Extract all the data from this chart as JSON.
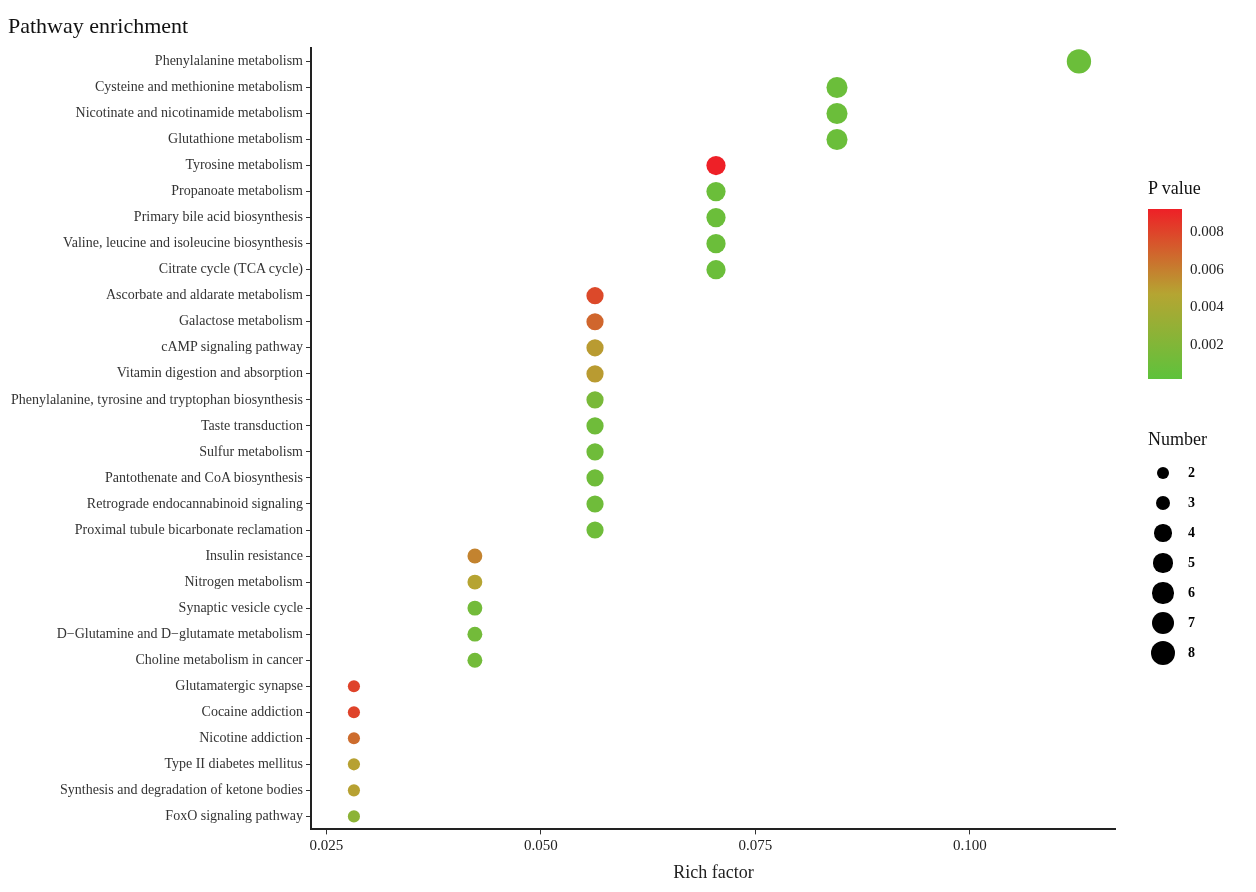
{
  "chart_data": {
    "type": "bubble",
    "title": "Pathway enrichment",
    "xlabel": "Rich factor",
    "clabel": "P value",
    "legend_title": "Number",
    "categories": [
      "Phenylalanine metabolism",
      "Cysteine and methionine metabolism",
      "Nicotinate and nicotinamide metabolism",
      "Glutathione metabolism",
      "Tyrosine metabolism",
      "Propanoate metabolism",
      "Primary bile acid biosynthesis",
      "Valine, leucine and isoleucine biosynthesis",
      "Citrate cycle (TCA cycle)",
      "Ascorbate and aldarate metabolism",
      "Galactose metabolism",
      "cAMP signaling pathway",
      "Vitamin digestion and absorption",
      "Phenylalanine, tyrosine and tryptophan biosynthesis",
      "Taste transduction",
      "Sulfur metabolism",
      "Pantothenate and CoA biosynthesis",
      "Retrograde endocannabinoid signaling",
      "Proximal tubule bicarbonate reclamation",
      "Insulin resistance",
      "Nitrogen metabolism",
      "Synaptic vesicle cycle",
      "D−Glutamine and D−glutamate metabolism",
      "Choline metabolism in cancer",
      "Glutamatergic synapse",
      "Cocaine addiction",
      "Nicotine addiction",
      "Type II diabetes mellitus",
      "Synthesis and degradation of ketone bodies",
      "FoxO signaling pathway"
    ],
    "orientation": "horizontal",
    "values": [
      0.1127,
      0.0845,
      0.0845,
      0.0845,
      0.0704,
      0.0704,
      0.0704,
      0.0704,
      0.0704,
      0.0563,
      0.0563,
      0.0563,
      0.0563,
      0.0563,
      0.0563,
      0.0563,
      0.0563,
      0.0563,
      0.0563,
      0.0423,
      0.0423,
      0.0423,
      0.0423,
      0.0423,
      0.0282,
      0.0282,
      0.0282,
      0.0282,
      0.0282,
      0.0282
    ],
    "sizes": [
      8,
      6,
      6,
      6,
      5,
      5,
      5,
      5,
      5,
      4,
      4,
      4,
      4,
      4,
      4,
      4,
      4,
      4,
      4,
      3,
      3,
      3,
      3,
      3,
      2,
      2,
      2,
      2,
      2,
      2
    ],
    "cvalues": [
      0.0008,
      0.0008,
      0.0008,
      0.0008,
      0.0092,
      0.0008,
      0.0008,
      0.0008,
      0.0008,
      0.0078,
      0.0068,
      0.005,
      0.005,
      0.0015,
      0.001,
      0.001,
      0.001,
      0.001,
      0.001,
      0.0058,
      0.0047,
      0.0012,
      0.0012,
      0.0012,
      0.008,
      0.008,
      0.0066,
      0.0048,
      0.0048,
      0.0025
    ],
    "size_legend": [
      2,
      3,
      4,
      5,
      6,
      7,
      8
    ],
    "xlim": [
      0.0232,
      0.117
    ],
    "xticks": [
      {
        "value": 0.025,
        "label": "0.025"
      },
      {
        "value": 0.05,
        "label": "0.050"
      },
      {
        "value": 0.075,
        "label": "0.075"
      },
      {
        "value": 0.1,
        "label": "0.100"
      }
    ],
    "clim": [
      0.0001,
      0.0092
    ],
    "cticks": [
      0.002,
      0.004,
      0.006,
      0.008
    ],
    "grid": false
  }
}
